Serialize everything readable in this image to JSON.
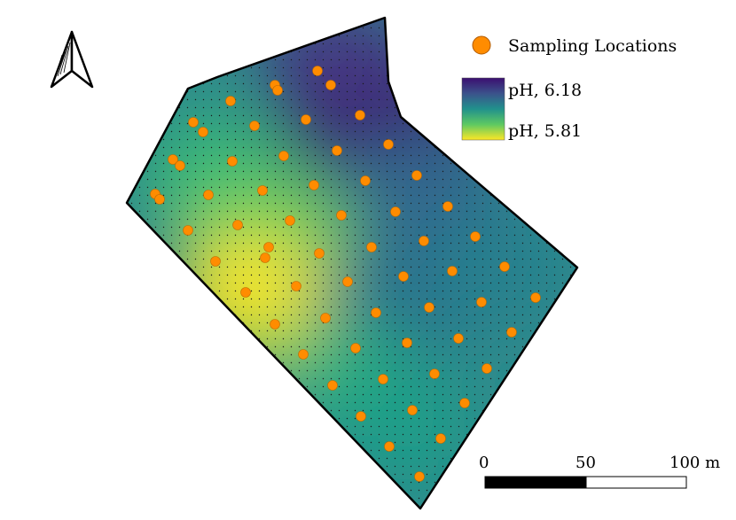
{
  "map": {
    "north_arrow": "north-arrow-icon",
    "field_colors": {
      "high": "#3b0f70",
      "mid": "#21918c",
      "low": "#fde725"
    },
    "point_color": "#ff8c00",
    "legend": {
      "points_label": "Sampling Locations",
      "gradient_high_label": "pH, 6.18",
      "gradient_low_label": "pH, 5.81"
    },
    "scale_bar": {
      "labels": [
        "0",
        "50",
        "100 m"
      ],
      "segment_colors": [
        "#000000",
        "#ffffff"
      ]
    }
  }
}
